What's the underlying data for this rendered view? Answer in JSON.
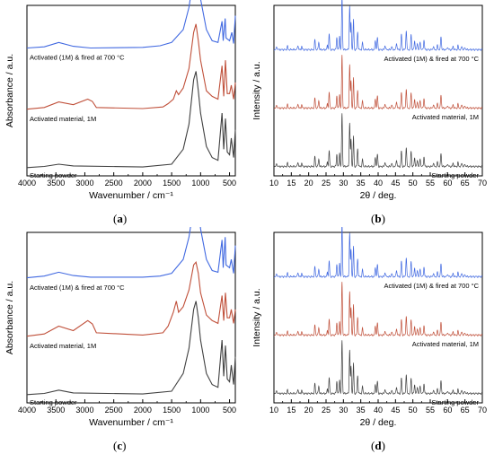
{
  "chart_data": [
    {
      "type": "line",
      "id": "a",
      "caption_letter": "a",
      "xlabel": "Wavenumber / cm⁻¹",
      "ylabel": "Absorbance / a.u.",
      "xlim": [
        4000,
        400
      ],
      "x_ticks": [
        4000,
        3500,
        3000,
        2500,
        2000,
        1500,
        1000,
        500
      ],
      "series": [
        {
          "name": "Activated (1M) & fired at 700 °C",
          "color": "#4169e1",
          "offset": 2.15,
          "points": [
            [
              4000,
              0.02
            ],
            [
              3700,
              0.04
            ],
            [
              3450,
              0.12
            ],
            [
              3200,
              0.05
            ],
            [
              2900,
              0.02
            ],
            [
              2000,
              0.03
            ],
            [
              1700,
              0.06
            ],
            [
              1500,
              0.12
            ],
            [
              1300,
              0.35
            ],
            [
              1200,
              0.75
            ],
            [
              1130,
              1.25
            ],
            [
              1090,
              1.6
            ],
            [
              1060,
              1.35
            ],
            [
              1000,
              0.9
            ],
            [
              900,
              0.35
            ],
            [
              800,
              0.15
            ],
            [
              700,
              0.12
            ],
            [
              630,
              0.5
            ],
            [
              610,
              0.15
            ],
            [
              575,
              0.55
            ],
            [
              560,
              0.2
            ],
            [
              500,
              0.15
            ],
            [
              460,
              0.3
            ],
            [
              430,
              0.1
            ],
            [
              400,
              0.6
            ]
          ]
        },
        {
          "name": "Activated material, 1M",
          "color": "#c0503a",
          "offset": 1.05,
          "points": [
            [
              4000,
              0.02
            ],
            [
              3700,
              0.05
            ],
            [
              3450,
              0.15
            ],
            [
              3200,
              0.1
            ],
            [
              2950,
              0.2
            ],
            [
              2870,
              0.16
            ],
            [
              2800,
              0.05
            ],
            [
              2000,
              0.03
            ],
            [
              1650,
              0.06
            ],
            [
              1560,
              0.12
            ],
            [
              1470,
              0.2
            ],
            [
              1420,
              0.35
            ],
            [
              1380,
              0.28
            ],
            [
              1300,
              0.4
            ],
            [
              1200,
              0.75
            ],
            [
              1120,
              1.4
            ],
            [
              1080,
              1.55
            ],
            [
              1040,
              1.25
            ],
            [
              1000,
              0.9
            ],
            [
              900,
              0.35
            ],
            [
              800,
              0.25
            ],
            [
              700,
              0.2
            ],
            [
              630,
              0.8
            ],
            [
              600,
              0.25
            ],
            [
              570,
              0.9
            ],
            [
              540,
              0.3
            ],
            [
              500,
              0.3
            ],
            [
              470,
              0.45
            ],
            [
              430,
              0.2
            ],
            [
              400,
              0.5
            ]
          ]
        },
        {
          "name": "Starting powder",
          "color": "#404040",
          "offset": 0.0,
          "points": [
            [
              4000,
              0.02
            ],
            [
              3700,
              0.04
            ],
            [
              3450,
              0.08
            ],
            [
              3200,
              0.05
            ],
            [
              2000,
              0.03
            ],
            [
              1500,
              0.08
            ],
            [
              1300,
              0.35
            ],
            [
              1200,
              0.8
            ],
            [
              1120,
              1.6
            ],
            [
              1080,
              1.75
            ],
            [
              1040,
              1.4
            ],
            [
              1000,
              1.0
            ],
            [
              900,
              0.4
            ],
            [
              800,
              0.2
            ],
            [
              700,
              0.15
            ],
            [
              630,
              1.0
            ],
            [
              600,
              0.35
            ],
            [
              570,
              0.9
            ],
            [
              540,
              0.3
            ],
            [
              500,
              0.25
            ],
            [
              470,
              0.55
            ],
            [
              430,
              0.2
            ],
            [
              400,
              0.7
            ]
          ]
        }
      ]
    },
    {
      "type": "line",
      "id": "b",
      "caption_letter": "b",
      "xlabel": "2θ / deg.",
      "ylabel": "Intensity / a.u.",
      "xlim": [
        10,
        70
      ],
      "x_ticks": [
        10,
        15,
        20,
        25,
        30,
        35,
        40,
        45,
        50,
        55,
        60,
        65,
        70
      ],
      "series": [
        {
          "name": "Activated (1M) & fired at 700 °C",
          "color": "#4169e1",
          "offset": 2.1
        },
        {
          "name": "Activated material, 1M",
          "color": "#c0503a",
          "offset": 1.05
        },
        {
          "name": "Starting powder",
          "color": "#404040",
          "offset": 0.0
        }
      ],
      "peaks": [
        [
          10.8,
          0.05
        ],
        [
          13.9,
          0.06
        ],
        [
          16.9,
          0.08
        ],
        [
          18.0,
          0.06
        ],
        [
          21.8,
          0.18
        ],
        [
          22.9,
          0.14
        ],
        [
          25.4,
          0.08
        ],
        [
          25.9,
          0.28
        ],
        [
          28.1,
          0.22
        ],
        [
          28.9,
          0.25
        ],
        [
          29.6,
          0.95
        ],
        [
          31.8,
          0.78
        ],
        [
          32.2,
          0.48
        ],
        [
          32.9,
          0.55
        ],
        [
          34.1,
          0.32
        ],
        [
          35.5,
          0.12
        ],
        [
          39.2,
          0.16
        ],
        [
          39.8,
          0.22
        ],
        [
          42.0,
          0.08
        ],
        [
          43.9,
          0.06
        ],
        [
          45.3,
          0.12
        ],
        [
          46.7,
          0.28
        ],
        [
          48.1,
          0.35
        ],
        [
          49.5,
          0.28
        ],
        [
          50.5,
          0.16
        ],
        [
          51.3,
          0.12
        ],
        [
          52.1,
          0.14
        ],
        [
          53.2,
          0.18
        ],
        [
          55.9,
          0.06
        ],
        [
          57.1,
          0.08
        ],
        [
          58.1,
          0.24
        ],
        [
          60.0,
          0.05
        ],
        [
          61.6,
          0.06
        ],
        [
          63.0,
          0.07
        ],
        [
          64.1,
          0.06
        ],
        [
          65.0,
          0.04
        ]
      ]
    },
    {
      "type": "line",
      "id": "c",
      "caption_letter": "c",
      "xlabel": "Wavenumber / cm⁻¹",
      "ylabel": "Absorbance / a.u.",
      "xlim": [
        4000,
        400
      ],
      "x_ticks": [
        4000,
        3500,
        3000,
        2500,
        2000,
        1500,
        1000,
        500
      ],
      "series": [
        {
          "name": "Activated (1M) & fired at 700 °C",
          "color": "#4169e1",
          "offset": 2.1,
          "points": [
            [
              4000,
              0.02
            ],
            [
              3700,
              0.05
            ],
            [
              3450,
              0.12
            ],
            [
              3200,
              0.06
            ],
            [
              2900,
              0.03
            ],
            [
              2000,
              0.03
            ],
            [
              1700,
              0.05
            ],
            [
              1500,
              0.1
            ],
            [
              1300,
              0.35
            ],
            [
              1200,
              0.75
            ],
            [
              1120,
              1.3
            ],
            [
              1080,
              1.65
            ],
            [
              1040,
              1.35
            ],
            [
              1000,
              0.9
            ],
            [
              900,
              0.35
            ],
            [
              800,
              0.15
            ],
            [
              700,
              0.12
            ],
            [
              630,
              0.7
            ],
            [
              610,
              0.2
            ],
            [
              575,
              0.75
            ],
            [
              560,
              0.25
            ],
            [
              500,
              0.2
            ],
            [
              470,
              0.35
            ],
            [
              430,
              0.1
            ],
            [
              400,
              0.6
            ]
          ]
        },
        {
          "name": "Activated material, 1M",
          "color": "#c0503a",
          "offset": 1.05,
          "points": [
            [
              4000,
              0.02
            ],
            [
              3700,
              0.06
            ],
            [
              3450,
              0.2
            ],
            [
              3200,
              0.12
            ],
            [
              2950,
              0.3
            ],
            [
              2870,
              0.24
            ],
            [
              2800,
              0.08
            ],
            [
              2000,
              0.04
            ],
            [
              1650,
              0.08
            ],
            [
              1560,
              0.2
            ],
            [
              1470,
              0.45
            ],
            [
              1420,
              0.65
            ],
            [
              1380,
              0.45
            ],
            [
              1300,
              0.55
            ],
            [
              1200,
              0.85
            ],
            [
              1120,
              1.3
            ],
            [
              1080,
              1.35
            ],
            [
              1040,
              1.15
            ],
            [
              1000,
              0.8
            ],
            [
              900,
              0.4
            ],
            [
              800,
              0.3
            ],
            [
              700,
              0.25
            ],
            [
              630,
              0.75
            ],
            [
              600,
              0.3
            ],
            [
              570,
              0.8
            ],
            [
              540,
              0.35
            ],
            [
              500,
              0.35
            ],
            [
              470,
              0.5
            ],
            [
              430,
              0.25
            ],
            [
              400,
              0.5
            ]
          ]
        },
        {
          "name": "Starting powder",
          "color": "#404040",
          "offset": 0.0,
          "points": [
            [
              4000,
              0.02
            ],
            [
              3700,
              0.04
            ],
            [
              3450,
              0.1
            ],
            [
              3200,
              0.05
            ],
            [
              2000,
              0.03
            ],
            [
              1500,
              0.08
            ],
            [
              1300,
              0.4
            ],
            [
              1200,
              0.85
            ],
            [
              1120,
              1.55
            ],
            [
              1080,
              1.7
            ],
            [
              1040,
              1.4
            ],
            [
              1000,
              1.0
            ],
            [
              900,
              0.4
            ],
            [
              800,
              0.2
            ],
            [
              700,
              0.15
            ],
            [
              630,
              1.0
            ],
            [
              600,
              0.35
            ],
            [
              570,
              0.9
            ],
            [
              540,
              0.3
            ],
            [
              500,
              0.25
            ],
            [
              470,
              0.55
            ],
            [
              430,
              0.2
            ],
            [
              400,
              0.7
            ]
          ]
        }
      ]
    },
    {
      "type": "line",
      "id": "d",
      "caption_letter": "d",
      "xlabel": "2θ / deg.",
      "ylabel": "Intensity / a.u.",
      "xlim": [
        10,
        70
      ],
      "x_ticks": [
        10,
        15,
        20,
        25,
        30,
        35,
        40,
        45,
        50,
        55,
        60,
        65,
        70
      ],
      "series": [
        {
          "name": "Activated (1M) & fired at 700 °C",
          "color": "#4169e1",
          "offset": 2.1
        },
        {
          "name": "Activated material, 1M",
          "color": "#c0503a",
          "offset": 1.05
        },
        {
          "name": "Starting powder",
          "color": "#404040",
          "offset": 0.0
        }
      ],
      "peaks": [
        [
          10.8,
          0.05
        ],
        [
          13.9,
          0.06
        ],
        [
          16.9,
          0.08
        ],
        [
          18.0,
          0.06
        ],
        [
          21.8,
          0.18
        ],
        [
          22.9,
          0.14
        ],
        [
          25.4,
          0.08
        ],
        [
          25.9,
          0.28
        ],
        [
          28.1,
          0.22
        ],
        [
          28.9,
          0.25
        ],
        [
          29.6,
          0.95
        ],
        [
          31.8,
          0.78
        ],
        [
          32.2,
          0.48
        ],
        [
          32.9,
          0.55
        ],
        [
          34.1,
          0.32
        ],
        [
          35.5,
          0.12
        ],
        [
          39.2,
          0.16
        ],
        [
          39.8,
          0.22
        ],
        [
          42.0,
          0.08
        ],
        [
          43.9,
          0.06
        ],
        [
          45.3,
          0.12
        ],
        [
          46.7,
          0.28
        ],
        [
          48.1,
          0.35
        ],
        [
          49.5,
          0.28
        ],
        [
          50.5,
          0.16
        ],
        [
          51.3,
          0.12
        ],
        [
          52.1,
          0.14
        ],
        [
          53.2,
          0.18
        ],
        [
          55.9,
          0.06
        ],
        [
          57.1,
          0.08
        ],
        [
          58.1,
          0.24
        ],
        [
          60.0,
          0.05
        ],
        [
          61.6,
          0.06
        ],
        [
          63.0,
          0.07
        ],
        [
          64.1,
          0.06
        ],
        [
          65.0,
          0.04
        ]
      ]
    }
  ]
}
